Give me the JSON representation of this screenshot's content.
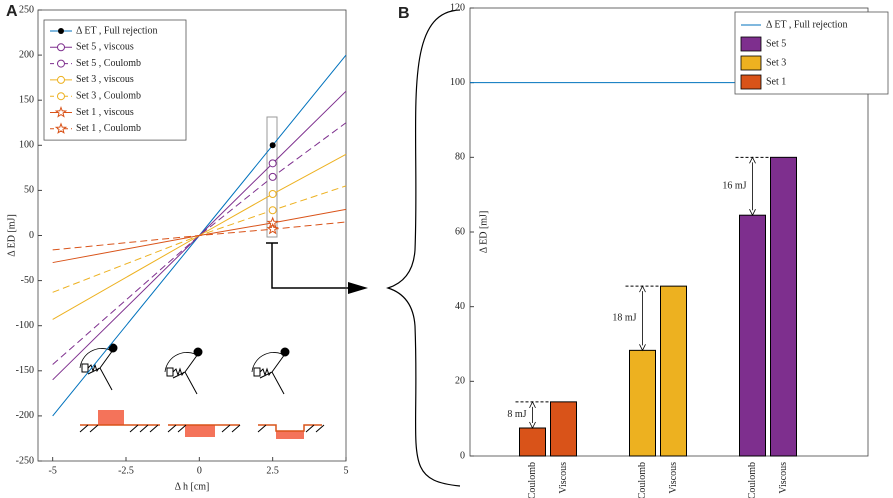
{
  "chart_data": [
    {
      "type": "line",
      "panel": "A",
      "xlabel": "Δ h [cm]",
      "ylabel": "Δ ED [mJ]",
      "x": [
        -5,
        0,
        2.5,
        5
      ],
      "marker_x": 2.5,
      "xlim": [
        -5.5,
        5
      ],
      "xticks": [
        -5,
        -2.5,
        0,
        2.5,
        5
      ],
      "ylim": [
        -250,
        250
      ],
      "yticks": [
        -250,
        -200,
        -150,
        -100,
        -50,
        0,
        50,
        100,
        150,
        200,
        250
      ],
      "legend": "upper left",
      "series": [
        {
          "name": "Δ ET , Full rejection",
          "color": "#0072bd",
          "marker": "dot",
          "dashed": false,
          "values": [
            -200,
            0,
            100,
            200
          ]
        },
        {
          "name": "Set 5 , viscous",
          "color": "#7e2f8e",
          "marker": "circle",
          "dashed": false,
          "values": [
            -160,
            0,
            80,
            160
          ]
        },
        {
          "name": "Set 5 , Coulomb",
          "color": "#7e2f8e",
          "marker": "circle",
          "dashed": true,
          "values": [
            -143,
            0,
            65,
            125
          ]
        },
        {
          "name": "Set 3 , viscous",
          "color": "#edb120",
          "marker": "circle",
          "dashed": false,
          "values": [
            -93,
            0,
            46,
            90
          ]
        },
        {
          "name": "Set 3 , Coulomb",
          "color": "#edb120",
          "marker": "circle",
          "dashed": true,
          "values": [
            -63,
            0,
            28,
            55
          ]
        },
        {
          "name": "Set 1 , viscous",
          "color": "#d95319",
          "marker": "star",
          "dashed": false,
          "values": [
            -30,
            0,
            14,
            29
          ]
        },
        {
          "name": "Set 1 , Coulomb",
          "color": "#d95319",
          "marker": "star",
          "dashed": true,
          "values": [
            -16,
            0,
            7,
            15
          ]
        }
      ]
    },
    {
      "type": "bar",
      "panel": "B",
      "ylabel": "Δ ED [mJ]",
      "categories": [
        "Coulomb",
        "Viscous"
      ],
      "ylim": [
        0,
        120
      ],
      "yticks": [
        0,
        20,
        40,
        60,
        80,
        100,
        120
      ],
      "legend": "upper right",
      "reference": {
        "name": "Δ ET , Full rejection",
        "color": "#0072bd",
        "value": 100
      },
      "series": [
        {
          "name": "Set 5",
          "color": "#7e2f8e",
          "values": [
            64.5,
            80
          ],
          "annotation": "16 mJ"
        },
        {
          "name": "Set 3",
          "color": "#edb120",
          "values": [
            28.3,
            45.5
          ],
          "annotation": "18 mJ"
        },
        {
          "name": "Set 1",
          "color": "#d95319",
          "values": [
            7.5,
            14.5
          ],
          "annotation": "8 mJ"
        }
      ]
    }
  ]
}
